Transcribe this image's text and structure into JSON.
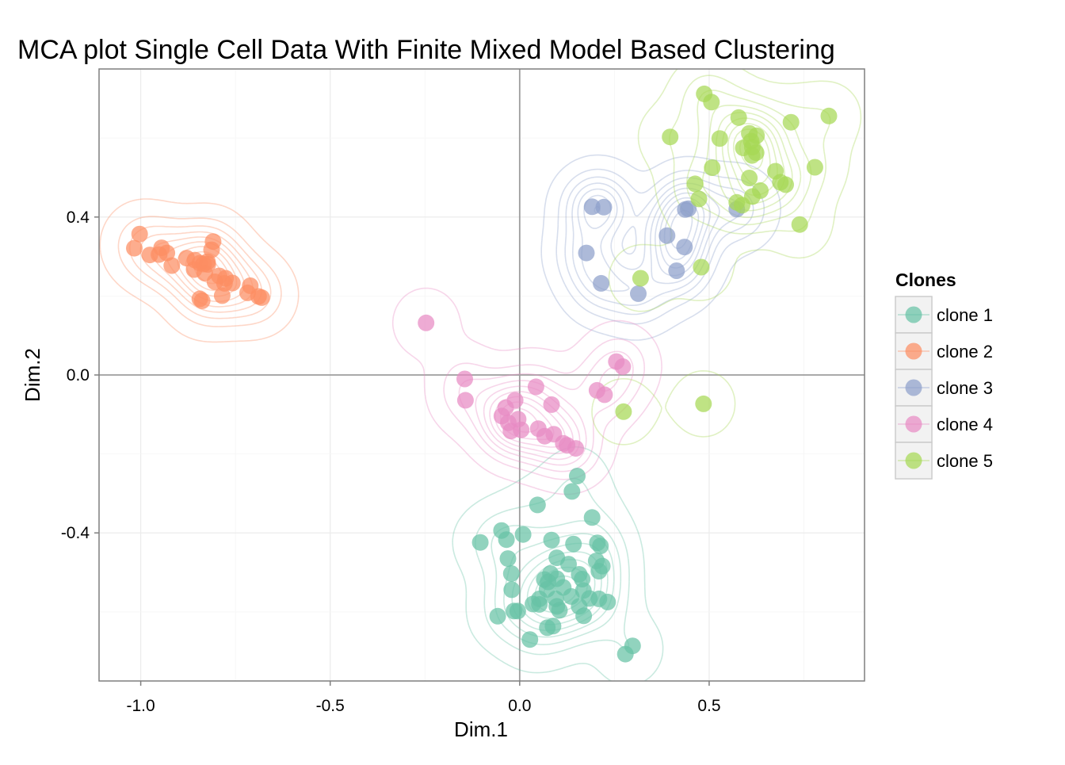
{
  "chart_data": {
    "type": "scatter",
    "title": "MCA plot Single Cell Data With Finite Mixed Model Based Clustering",
    "xlabel": "Dim.1",
    "ylabel": "Dim.2",
    "xlim": [
      -1.11,
      0.91
    ],
    "ylim": [
      -0.775,
      0.775
    ],
    "x_ticks": [
      -1.0,
      -0.5,
      0.0,
      0.5
    ],
    "x_tick_labels": [
      "-1.0",
      "-0.5",
      "0.0",
      "0.5"
    ],
    "y_ticks": [
      -0.4,
      0.0,
      0.4
    ],
    "y_tick_labels": [
      "-0.4",
      "0.0",
      "0.4"
    ],
    "reference_lines": {
      "x": 0,
      "y": 0
    },
    "grid": true,
    "density_contours": true,
    "legend": {
      "title": "Clones",
      "position": "right"
    },
    "series": [
      {
        "name": "clone 1",
        "color": "#66c2a5",
        "points": [
          [
            0.047,
            -0.329
          ],
          [
            0.152,
            -0.256
          ],
          [
            0.138,
            -0.295
          ],
          [
            0.191,
            -0.361
          ],
          [
            -0.104,
            -0.424
          ],
          [
            -0.048,
            -0.394
          ],
          [
            0.009,
            -0.404
          ],
          [
            -0.035,
            -0.417
          ],
          [
            0.084,
            -0.418
          ],
          [
            0.142,
            -0.428
          ],
          [
            0.205,
            -0.425
          ],
          [
            0.213,
            -0.433
          ],
          [
            -0.031,
            -0.465
          ],
          [
            -0.022,
            -0.503
          ],
          [
            0.098,
            -0.463
          ],
          [
            0.129,
            -0.479
          ],
          [
            0.202,
            -0.471
          ],
          [
            0.218,
            -0.484
          ],
          [
            0.081,
            -0.503
          ],
          [
            0.065,
            -0.518
          ],
          [
            0.075,
            -0.524
          ],
          [
            0.098,
            -0.516
          ],
          [
            0.157,
            -0.505
          ],
          [
            0.165,
            -0.517
          ],
          [
            0.209,
            -0.497
          ],
          [
            -0.021,
            -0.544
          ],
          [
            0.072,
            -0.543
          ],
          [
            0.115,
            -0.538
          ],
          [
            0.168,
            -0.546
          ],
          [
            0.052,
            -0.567
          ],
          [
            0.095,
            -0.567
          ],
          [
            0.136,
            -0.561
          ],
          [
            0.052,
            -0.581
          ],
          [
            0.035,
            -0.58
          ],
          [
            0.098,
            -0.586
          ],
          [
            0.209,
            -0.567
          ],
          [
            0.184,
            -0.566
          ],
          [
            0.232,
            -0.575
          ],
          [
            0.157,
            -0.586
          ],
          [
            -0.015,
            -0.598
          ],
          [
            -0.005,
            -0.598
          ],
          [
            -0.058,
            -0.611
          ],
          [
            0.105,
            -0.596
          ],
          [
            0.169,
            -0.61
          ],
          [
            0.073,
            -0.64
          ],
          [
            0.088,
            -0.636
          ],
          [
            0.027,
            -0.67
          ],
          [
            0.298,
            -0.686
          ],
          [
            0.279,
            -0.707
          ]
        ]
      },
      {
        "name": "clone 2",
        "color": "#fc8d62",
        "points": [
          [
            -1.003,
            0.357
          ],
          [
            -1.017,
            0.321
          ],
          [
            -0.976,
            0.304
          ],
          [
            -0.945,
            0.322
          ],
          [
            -0.931,
            0.309
          ],
          [
            -0.952,
            0.305
          ],
          [
            -0.918,
            0.277
          ],
          [
            -0.879,
            0.296
          ],
          [
            -0.857,
            0.291
          ],
          [
            -0.844,
            0.283
          ],
          [
            -0.834,
            0.281
          ],
          [
            -0.824,
            0.287
          ],
          [
            -0.809,
            0.338
          ],
          [
            -0.813,
            0.317
          ],
          [
            -0.859,
            0.267
          ],
          [
            -0.831,
            0.258
          ],
          [
            -0.793,
            0.251
          ],
          [
            -0.804,
            0.236
          ],
          [
            -0.779,
            0.232
          ],
          [
            -0.758,
            0.233
          ],
          [
            -0.785,
            0.201
          ],
          [
            -0.711,
            0.226
          ],
          [
            -0.718,
            0.208
          ],
          [
            -0.689,
            0.199
          ],
          [
            -0.681,
            0.196
          ],
          [
            -0.844,
            0.193
          ],
          [
            -0.838,
            0.188
          ],
          [
            -0.823,
            0.28
          ],
          [
            -0.776,
            0.245
          ]
        ]
      },
      {
        "name": "clone 3",
        "color": "#8da0cb",
        "points": [
          [
            0.191,
            0.426
          ],
          [
            0.222,
            0.425
          ],
          [
            0.445,
            0.421
          ],
          [
            0.437,
            0.419
          ],
          [
            0.573,
            0.42
          ],
          [
            0.389,
            0.353
          ],
          [
            0.435,
            0.324
          ],
          [
            0.176,
            0.309
          ],
          [
            0.414,
            0.264
          ],
          [
            0.215,
            0.232
          ],
          [
            0.313,
            0.206
          ]
        ]
      },
      {
        "name": "clone 4",
        "color": "#e78ac3",
        "points": [
          [
            -0.247,
            0.132
          ],
          [
            0.255,
            0.034
          ],
          [
            0.272,
            0.021
          ],
          [
            -0.145,
            -0.01
          ],
          [
            0.043,
            -0.03
          ],
          [
            0.204,
            -0.039
          ],
          [
            0.224,
            -0.05
          ],
          [
            -0.143,
            -0.064
          ],
          [
            -0.012,
            -0.064
          ],
          [
            -0.037,
            -0.083
          ],
          [
            0.084,
            -0.075
          ],
          [
            -0.047,
            -0.104
          ],
          [
            -0.004,
            -0.112
          ],
          [
            -0.023,
            -0.142
          ],
          [
            -0.03,
            -0.121
          ],
          [
            0.004,
            -0.139
          ],
          [
            0.049,
            -0.136
          ],
          [
            0.066,
            -0.155
          ],
          [
            0.09,
            -0.15
          ],
          [
            0.115,
            -0.173
          ],
          [
            0.125,
            -0.178
          ],
          [
            0.148,
            -0.186
          ]
        ]
      },
      {
        "name": "clone 5",
        "color": "#a6d854",
        "points": [
          [
            0.487,
            0.712
          ],
          [
            0.506,
            0.691
          ],
          [
            0.578,
            0.652
          ],
          [
            0.716,
            0.64
          ],
          [
            0.816,
            0.656
          ],
          [
            0.397,
            0.603
          ],
          [
            0.528,
            0.599
          ],
          [
            0.606,
            0.612
          ],
          [
            0.625,
            0.606
          ],
          [
            0.611,
            0.592
          ],
          [
            0.59,
            0.575
          ],
          [
            0.614,
            0.577
          ],
          [
            0.624,
            0.563
          ],
          [
            0.613,
            0.556
          ],
          [
            0.508,
            0.525
          ],
          [
            0.675,
            0.516
          ],
          [
            0.779,
            0.526
          ],
          [
            0.606,
            0.499
          ],
          [
            0.688,
            0.488
          ],
          [
            0.702,
            0.482
          ],
          [
            0.463,
            0.484
          ],
          [
            0.635,
            0.467
          ],
          [
            0.614,
            0.452
          ],
          [
            0.473,
            0.446
          ],
          [
            0.573,
            0.437
          ],
          [
            0.587,
            0.43
          ],
          [
            0.739,
            0.381
          ],
          [
            0.479,
            0.273
          ],
          [
            0.319,
            0.245
          ],
          [
            0.274,
            -0.093
          ],
          [
            0.485,
            -0.073
          ]
        ]
      }
    ]
  }
}
